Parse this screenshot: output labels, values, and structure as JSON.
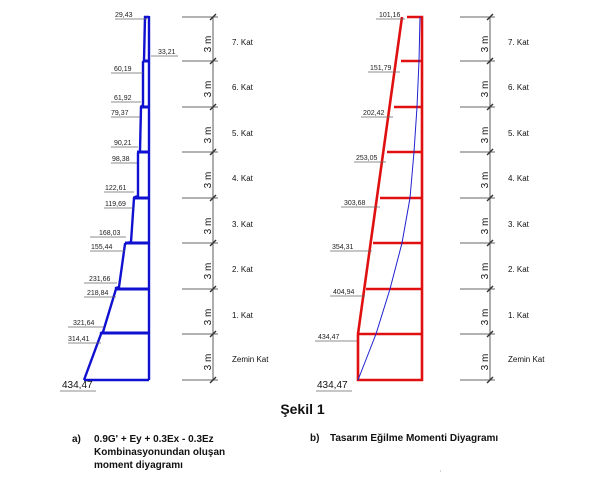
{
  "figure_title": "Şekil 1",
  "caption_a": {
    "label": "a)",
    "lines": [
      "0.9G' + Ey + 0.3Ex - 0.3Ez",
      "Kombinasyonundan oluşan",
      "moment diyagramı"
    ]
  },
  "caption_b": {
    "label": "b)",
    "text": "Tasarım Eğilme Momenti Diyagramı"
  },
  "story_height_label": "3 m",
  "floor_labels": [
    "7. Kat",
    "6. Kat",
    "5. Kat",
    "4. Kat",
    "3. Kat",
    "2. Kat",
    "1. Kat",
    "Zemin Kat"
  ],
  "diagram_a": {
    "base_value": "434,47",
    "values": [
      "29,43",
      "33,21",
      "60,19",
      "61,92",
      "79,37",
      "90,21",
      "98,38",
      "122,61",
      "119,69",
      "168,03",
      "155,44",
      "231,66",
      "218,84",
      "321,64",
      "314,41"
    ],
    "color": "#1010d0"
  },
  "diagram_b": {
    "base_value": "434,47",
    "values": [
      "101,16",
      "151,79",
      "202,42",
      "253,05",
      "303,68",
      "354,31",
      "404,94",
      "434,47"
    ],
    "color": "#e01010",
    "inner_curve_color": "#2020d0"
  },
  "stray_mark": "ı"
}
